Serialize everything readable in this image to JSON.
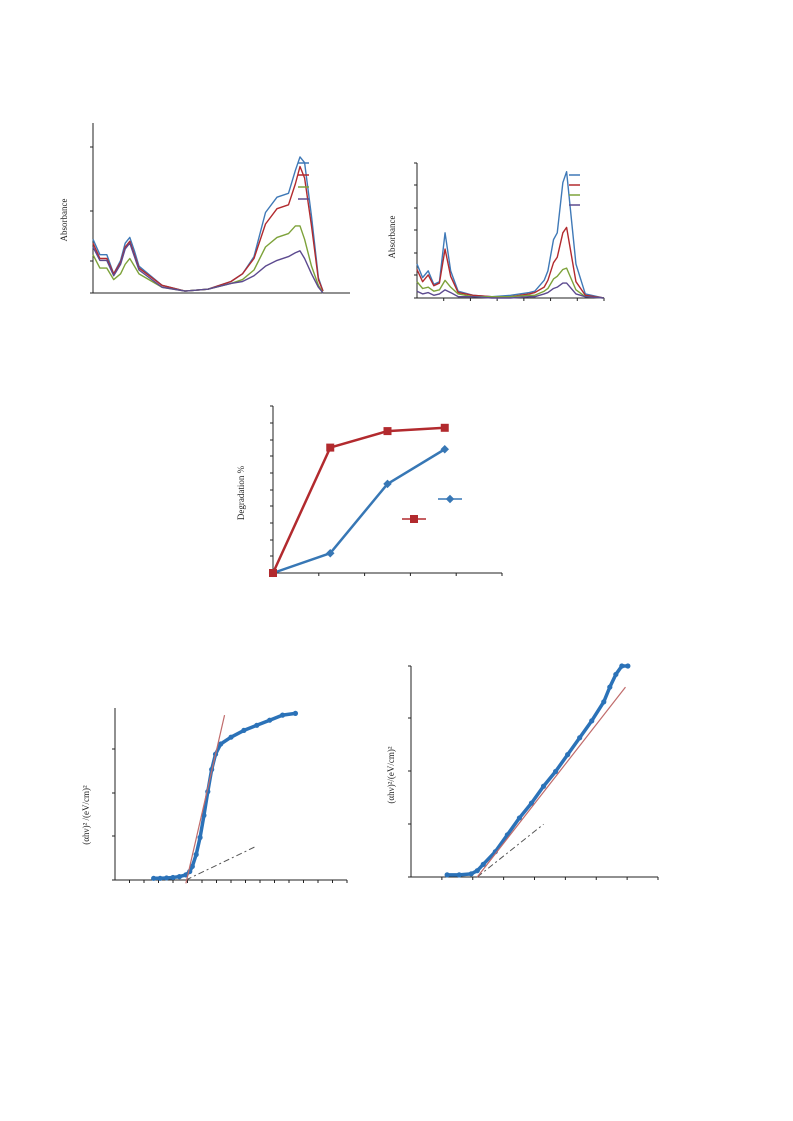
{
  "chart_data": [
    {
      "id": "uv-vis-a",
      "type": "line",
      "ylabel": "Absorbance",
      "grid": false,
      "legend_position": "top-right",
      "colors": [
        "#3f79b7",
        "#b22a2e",
        "#7da23a",
        "#5c4a8f"
      ],
      "x": [
        0,
        3,
        6,
        9,
        12,
        14,
        16,
        18,
        20,
        30,
        40,
        50,
        60,
        65,
        70,
        75,
        80,
        85,
        88,
        90,
        92,
        95,
        98,
        100
      ],
      "series": [
        {
          "values": [
            28,
            20,
            20,
            10,
            17,
            26,
            29,
            22,
            14,
            4,
            1,
            2,
            6,
            10,
            19,
            42,
            50,
            52,
            64,
            71,
            68,
            40,
            8,
            1
          ]
        },
        {
          "values": [
            26,
            18,
            18,
            10,
            16,
            24,
            27,
            20,
            13,
            4,
            1,
            2,
            6,
            10,
            18,
            36,
            44,
            46,
            57,
            66,
            60,
            35,
            7,
            1
          ]
        },
        {
          "values": [
            20,
            13,
            13,
            7,
            10,
            15,
            18,
            14,
            10,
            3,
            1,
            2,
            5,
            7,
            12,
            24,
            29,
            31,
            35,
            35,
            28,
            14,
            4,
            0
          ]
        },
        {
          "values": [
            24,
            17,
            17,
            9,
            15,
            23,
            26,
            19,
            12,
            3,
            1,
            2,
            5,
            6,
            9,
            14,
            17,
            19,
            21,
            22,
            18,
            10,
            3,
            0
          ]
        }
      ]
    },
    {
      "id": "uv-vis-b",
      "type": "line",
      "ylabel": "Absorbance",
      "grid": false,
      "legend_position": "top-right",
      "colors": [
        "#3f79b7",
        "#b22a2e",
        "#7da23a",
        "#5c4a8f"
      ],
      "x": [
        0,
        3,
        6,
        9,
        12,
        15,
        18,
        22,
        30,
        40,
        50,
        60,
        63,
        68,
        70,
        73,
        75,
        78,
        80,
        85,
        90,
        100
      ],
      "series": [
        {
          "values": [
            25,
            15,
            20,
            10,
            12,
            48,
            20,
            5,
            2,
            1,
            2,
            4,
            5,
            13,
            20,
            43,
            48,
            85,
            93,
            25,
            3,
            0
          ]
        },
        {
          "values": [
            21,
            12,
            17,
            9,
            11,
            36,
            16,
            4,
            2,
            1,
            1,
            3,
            4,
            8,
            13,
            26,
            30,
            48,
            52,
            12,
            2,
            0
          ]
        },
        {
          "values": [
            12,
            7,
            8,
            5,
            6,
            13,
            8,
            3,
            1,
            1,
            1,
            2,
            2,
            5,
            7,
            14,
            16,
            21,
            22,
            6,
            1,
            0
          ]
        },
        {
          "values": [
            5,
            3,
            4,
            2,
            3,
            6,
            4,
            1,
            1,
            0,
            0,
            1,
            1,
            3,
            4,
            7,
            8,
            11,
            11,
            3,
            1,
            0
          ]
        }
      ]
    },
    {
      "id": "degradation",
      "type": "line",
      "ylabel": "Degradation %",
      "grid": false,
      "legend_position": "center-right",
      "colors": [
        "#3777b5",
        "#b22a2e"
      ],
      "markers": [
        "diamond",
        "square"
      ],
      "x": [
        0,
        30,
        60,
        90
      ],
      "series": [
        {
          "values": [
            0,
            12,
            54,
            75
          ]
        },
        {
          "values": [
            0,
            76,
            86,
            88
          ]
        }
      ]
    },
    {
      "id": "tauc-a",
      "type": "scatter",
      "ylabel": "(αhν)² /(eV/cm)²",
      "grid": false,
      "colors": [
        "#2b72b8",
        "#c06b6b",
        "#555555"
      ],
      "points": [
        [
          2.6,
          0.01
        ],
        [
          2.65,
          0.01
        ],
        [
          2.7,
          0.012
        ],
        [
          2.75,
          0.015
        ],
        [
          2.8,
          0.02
        ],
        [
          2.85,
          0.03
        ],
        [
          2.88,
          0.05
        ],
        [
          2.9,
          0.08
        ],
        [
          2.93,
          0.15
        ],
        [
          2.96,
          0.25
        ],
        [
          2.99,
          0.38
        ],
        [
          3.02,
          0.52
        ],
        [
          3.05,
          0.65
        ],
        [
          3.08,
          0.74
        ],
        [
          3.12,
          0.8
        ],
        [
          3.2,
          0.84
        ],
        [
          3.3,
          0.88
        ],
        [
          3.4,
          0.91
        ],
        [
          3.5,
          0.94
        ],
        [
          3.6,
          0.97
        ],
        [
          3.7,
          0.98
        ]
      ],
      "fit_line": [
        [
          2.85,
          -0.02
        ],
        [
          3.15,
          0.97
        ]
      ],
      "baseline": [
        [
          2.85,
          0.0
        ],
        [
          3.4,
          0.2
        ]
      ]
    },
    {
      "id": "tauc-b",
      "type": "scatter",
      "ylabel": "(αhν)²/(eV/cm)²",
      "grid": false,
      "colors": [
        "#2b72b8",
        "#c06b6b",
        "#555555"
      ],
      "points": [
        [
          2.5,
          0.01
        ],
        [
          2.6,
          0.01
        ],
        [
          2.7,
          0.015
        ],
        [
          2.75,
          0.03
        ],
        [
          2.8,
          0.06
        ],
        [
          2.9,
          0.12
        ],
        [
          3.0,
          0.2
        ],
        [
          3.1,
          0.28
        ],
        [
          3.2,
          0.35
        ],
        [
          3.3,
          0.43
        ],
        [
          3.4,
          0.5
        ],
        [
          3.5,
          0.58
        ],
        [
          3.6,
          0.66
        ],
        [
          3.7,
          0.74
        ],
        [
          3.8,
          0.83
        ],
        [
          3.85,
          0.9
        ],
        [
          3.9,
          0.96
        ],
        [
          3.95,
          1.0
        ],
        [
          4.0,
          1.0
        ]
      ],
      "fit_line": [
        [
          2.75,
          0.0
        ],
        [
          3.98,
          0.9
        ]
      ],
      "baseline": [
        [
          2.75,
          0.0
        ],
        [
          3.3,
          0.25
        ]
      ]
    }
  ]
}
